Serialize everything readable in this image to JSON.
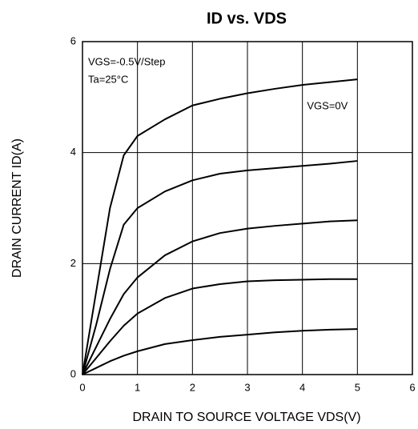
{
  "chart_data": {
    "type": "line",
    "title": "ID vs. VDS",
    "x_label": "DRAIN TO SOURCE VOLTAGE VDS(V)",
    "y_label": "DRAIN CURRENT ID(A)",
    "annotations": [
      "VGS=-0.5V/Step",
      "Ta=25°C"
    ],
    "x": [
      0,
      0.25,
      0.5,
      0.75,
      1,
      1.5,
      2,
      2.5,
      3,
      3.5,
      4,
      4.5,
      5
    ],
    "series": [
      {
        "name": "VGS=0V",
        "color": "#000000",
        "values": [
          0,
          1.5,
          3.0,
          3.95,
          4.3,
          4.6,
          4.85,
          4.97,
          5.07,
          5.15,
          5.22,
          5.27,
          5.32
        ]
      },
      {
        "color": "#000000",
        "values": [
          0,
          0.9,
          1.9,
          2.7,
          3.0,
          3.3,
          3.5,
          3.62,
          3.68,
          3.72,
          3.76,
          3.8,
          3.85
        ]
      },
      {
        "color": "#000000",
        "values": [
          0,
          0.5,
          1.0,
          1.45,
          1.75,
          2.15,
          2.4,
          2.55,
          2.63,
          2.68,
          2.72,
          2.76,
          2.78
        ]
      },
      {
        "color": "#000000",
        "values": [
          0,
          0.3,
          0.6,
          0.88,
          1.1,
          1.38,
          1.55,
          1.63,
          1.68,
          1.7,
          1.71,
          1.72,
          1.72
        ]
      },
      {
        "color": "#000000",
        "values": [
          0,
          0.12,
          0.24,
          0.34,
          0.42,
          0.55,
          0.62,
          0.68,
          0.72,
          0.76,
          0.79,
          0.81,
          0.82
        ]
      }
    ],
    "xlim": [
      0,
      6
    ],
    "xticks": [
      0,
      1,
      2,
      3,
      4,
      5,
      6
    ],
    "ylim": [
      0,
      6
    ],
    "yticks": [
      0,
      2,
      4,
      6
    ],
    "grid": true
  }
}
